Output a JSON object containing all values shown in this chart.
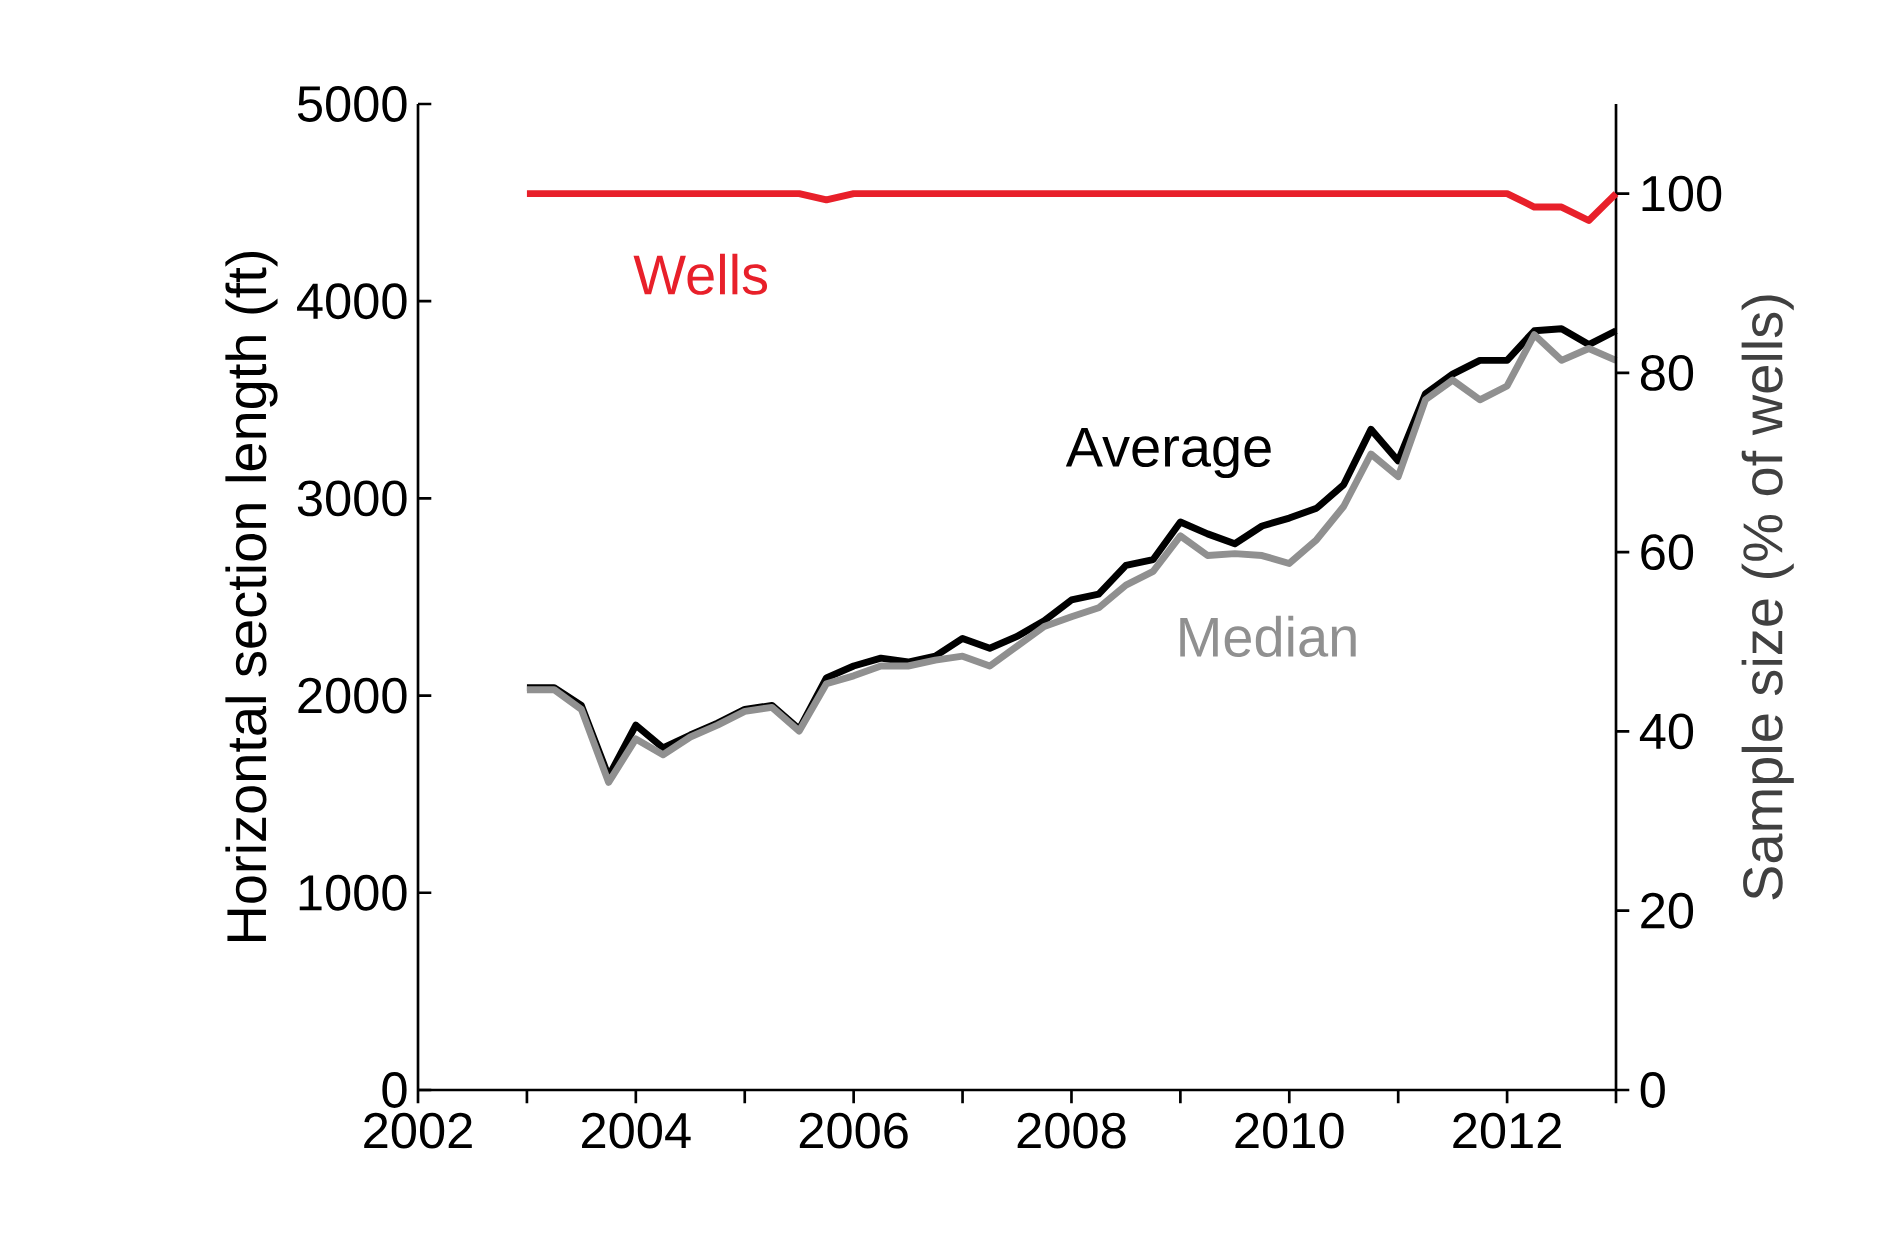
{
  "chart_data": {
    "type": "line",
    "ylabel": "Horizontal section length (ft)",
    "y2label": "Sample size (% of wells)",
    "xlim": [
      2002,
      2013
    ],
    "xticks": [
      2002,
      {
        "value": 2003,
        "label": null
      },
      2004,
      {
        "value": 2005,
        "label": null
      },
      2006,
      {
        "value": 2007,
        "label": null
      },
      2008,
      {
        "value": 2009,
        "label": null
      },
      2010,
      {
        "value": 2011,
        "label": null
      },
      2012,
      {
        "value": 2013,
        "label": null
      }
    ],
    "ylim": [
      0,
      5000
    ],
    "yticks": [
      0,
      1000,
      2000,
      3000,
      4000,
      5000
    ],
    "y2lim": [
      0,
      110
    ],
    "y2ticks": [
      0,
      20,
      40,
      60,
      80,
      100
    ],
    "grid": false,
    "legend": false,
    "series": [
      {
        "name": "Wells",
        "color": "#e8202a",
        "axis": "y2",
        "x": [
          2003,
          2004,
          2005,
          2005.5,
          2005.75,
          2006,
          2007,
          2008,
          2009,
          2010,
          2011,
          2011.75,
          2012,
          2012.25,
          2012.5,
          2012.75,
          2013
        ],
        "values": [
          100,
          100,
          100,
          100,
          99.3,
          100,
          100,
          100,
          100,
          100,
          100,
          100,
          100,
          98.5,
          98.5,
          97,
          100
        ]
      },
      {
        "name": "Average",
        "color": "#000000",
        "x": [
          2003,
          2003.25,
          2003.5,
          2003.75,
          2004,
          2004.25,
          2004.5,
          2004.75,
          2005,
          2005.25,
          2005.5,
          2005.75,
          2006,
          2006.25,
          2006.5,
          2006.75,
          2007,
          2007.25,
          2007.5,
          2007.75,
          2008,
          2008.25,
          2008.5,
          2008.75,
          2009,
          2009.25,
          2009.5,
          2009.75,
          2010,
          2010.25,
          2010.5,
          2010.75,
          2011,
          2011.25,
          2011.5,
          2011.75,
          2012,
          2012.25,
          2012.5,
          2012.75,
          2013
        ],
        "values": [
          2040,
          2040,
          1950,
          1590,
          1850,
          1735,
          1800,
          1860,
          1930,
          1950,
          1830,
          2090,
          2150,
          2190,
          2170,
          2200,
          2290,
          2240,
          2300,
          2380,
          2485,
          2515,
          2660,
          2690,
          2880,
          2820,
          2770,
          2860,
          2900,
          2950,
          3070,
          3350,
          3190,
          3530,
          3630,
          3700,
          3700,
          3850,
          3860,
          3780,
          3850
        ]
      },
      {
        "name": "Median",
        "color": "#909090",
        "x": [
          2003,
          2003.25,
          2003.5,
          2003.75,
          2004,
          2004.25,
          2004.5,
          2004.75,
          2005,
          2005.25,
          2005.5,
          2005.75,
          2006,
          2006.25,
          2006.5,
          2006.75,
          2007,
          2007.25,
          2007.5,
          2007.75,
          2008,
          2008.25,
          2008.5,
          2008.75,
          2009,
          2009.25,
          2009.5,
          2009.75,
          2010,
          2010.25,
          2010.5,
          2010.75,
          2011,
          2011.25,
          2011.5,
          2011.75,
          2012,
          2012.25,
          2012.5,
          2012.75,
          2013
        ],
        "values": [
          2030,
          2030,
          1930,
          1560,
          1780,
          1700,
          1790,
          1850,
          1920,
          1940,
          1820,
          2060,
          2100,
          2150,
          2150,
          2180,
          2200,
          2150,
          2250,
          2350,
          2400,
          2445,
          2560,
          2630,
          2810,
          2710,
          2720,
          2710,
          2670,
          2790,
          2960,
          3225,
          3110,
          3500,
          3600,
          3500,
          3570,
          3830,
          3700,
          3760,
          3700
        ]
      }
    ]
  }
}
